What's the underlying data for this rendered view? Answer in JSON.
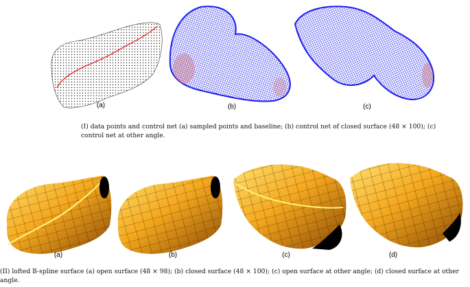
{
  "figure_top": {
    "panels": [
      {
        "label": "(a)",
        "content": "sampled data points with red baseline"
      },
      {
        "label": "(b)",
        "content": "blue control net, closed surface"
      },
      {
        "label": "(c)",
        "content": "blue control net, other angle"
      }
    ],
    "caption": "(I) data points and control net (a) sampled points and baseline; (b) control net of closed surface (48 × 100); (c) control net at other angle."
  },
  "figure_bottom": {
    "panels": [
      {
        "label": "(a)",
        "content": "open lofted surface"
      },
      {
        "label": "(b)",
        "content": "closed lofted surface"
      },
      {
        "label": "(c)",
        "content": "open surface other angle"
      },
      {
        "label": "(d)",
        "content": "closed surface other angle"
      }
    ],
    "caption": "(II) lofted B-spline surface (a) open surface (48 × 98); (b) closed surface (48 × 100); (c) open surface at other angle; (d) closed surface at other angle."
  },
  "colors": {
    "points": "#222222",
    "baseline": "#e03030",
    "net": "#1a1aee",
    "net_accent": "#d06060",
    "surface_light": "#ffd24a",
    "surface_mid": "#f0a020",
    "surface_dark": "#8a4a05",
    "interior": "#000000"
  }
}
